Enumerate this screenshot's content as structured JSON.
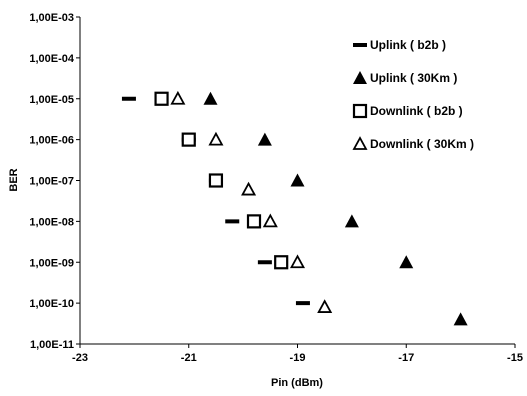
{
  "chart_data": {
    "type": "scatter",
    "xlabel": "Pin (dBm)",
    "ylabel": "BER",
    "xlim": [
      -23,
      -15
    ],
    "ylim": [
      1e-11,
      0.001
    ],
    "yscale": "log",
    "grid": false,
    "legend_position": "top-right",
    "x_ticks": [
      "-23",
      "-21",
      "-19",
      "-17",
      "-15"
    ],
    "y_ticks": [
      "1,00E-11",
      "1,00E-10",
      "1,00E-09",
      "1,00E-08",
      "1,00E-07",
      "1,00E-06",
      "1,00E-05",
      "1,00E-04",
      "1,00E-03"
    ],
    "series": [
      {
        "name": "Uplink  ( b2b )",
        "marker": "dash",
        "x": [
          -22.1,
          -21.0,
          -20.5,
          -20.2,
          -19.6,
          -18.9
        ],
        "y": [
          1e-05,
          1e-06,
          1e-07,
          1e-08,
          1e-09,
          1e-10
        ]
      },
      {
        "name": "Uplink  ( 30Km )",
        "marker": "filled-triangle",
        "x": [
          -20.6,
          -19.6,
          -19.0,
          -18.0,
          -17.0,
          -16.0
        ],
        "y": [
          1e-05,
          1e-06,
          1e-07,
          1e-08,
          1e-09,
          4e-11
        ]
      },
      {
        "name": "Downlink  ( b2b )",
        "marker": "open-square",
        "x": [
          -21.5,
          -21.0,
          -20.5,
          -19.8,
          -19.3
        ],
        "y": [
          1e-05,
          1e-06,
          1e-07,
          1e-08,
          1e-09
        ]
      },
      {
        "name": "Downlink  ( 30Km )",
        "marker": "open-triangle",
        "x": [
          -21.2,
          -20.5,
          -19.9,
          -19.5,
          -19.0,
          -18.5
        ],
        "y": [
          1e-05,
          1e-06,
          6e-08,
          1e-08,
          1e-09,
          8e-11
        ]
      }
    ]
  }
}
